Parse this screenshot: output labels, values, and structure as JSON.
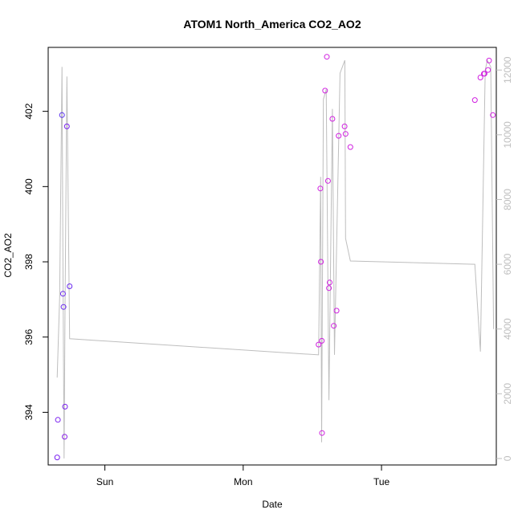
{
  "chart_data": {
    "type": "scatter",
    "title": "ATOM1 North_America CO2_AO2",
    "xlabel": "Date",
    "ylabel": "CO2_AO2",
    "x_ticks": [
      "Sun",
      "Mon",
      "Tue"
    ],
    "x_tick_positions": [
      1.0,
      2.0,
      3.0
    ],
    "xlim": [
      0.59,
      3.83
    ],
    "ylim": [
      392.6,
      403.7
    ],
    "y_ticks": [
      394,
      396,
      398,
      400,
      402
    ],
    "y2lim": [
      -200,
      12700
    ],
    "y2_ticks": [
      0,
      2000,
      4000,
      6000,
      8000,
      10000,
      12000
    ],
    "grid": false,
    "legend": "none",
    "colors": {
      "axis": "#000000",
      "secondary_axis": "#bebebe",
      "line": "#bebebe"
    },
    "series": [
      {
        "kind": "points",
        "points": [
          {
            "x": 0.655,
            "y": 392.8,
            "color": "#7a20f0"
          },
          {
            "x": 0.66,
            "y": 393.8,
            "color": "#7a20f0"
          },
          {
            "x": 0.69,
            "y": 401.9,
            "color": "#5a30f0"
          },
          {
            "x": 0.697,
            "y": 397.15,
            "color": "#6a28f0"
          },
          {
            "x": 0.701,
            "y": 396.8,
            "color": "#6a28f0"
          },
          {
            "x": 0.709,
            "y": 393.35,
            "color": "#8a20e8"
          },
          {
            "x": 0.712,
            "y": 394.15,
            "color": "#7a20f0"
          },
          {
            "x": 0.725,
            "y": 401.6,
            "color": "#7a20f0"
          },
          {
            "x": 0.745,
            "y": 397.35,
            "color": "#6a28f0"
          },
          {
            "x": 2.545,
            "y": 395.8,
            "color": "#d020e0"
          },
          {
            "x": 2.558,
            "y": 399.95,
            "color": "#d020e0"
          },
          {
            "x": 2.562,
            "y": 398.0,
            "color": "#d020e0"
          },
          {
            "x": 2.568,
            "y": 395.9,
            "color": "#d020e0"
          },
          {
            "x": 2.57,
            "y": 393.45,
            "color": "#d020e0"
          },
          {
            "x": 2.592,
            "y": 402.55,
            "color": "#d020e0"
          },
          {
            "x": 2.605,
            "y": 403.45,
            "color": "#d020e0"
          },
          {
            "x": 2.613,
            "y": 400.15,
            "color": "#d020e0"
          },
          {
            "x": 2.62,
            "y": 397.3,
            "color": "#d020e0"
          },
          {
            "x": 2.625,
            "y": 397.45,
            "color": "#d020e0"
          },
          {
            "x": 2.645,
            "y": 401.8,
            "color": "#d020e0"
          },
          {
            "x": 2.655,
            "y": 396.3,
            "color": "#d020e0"
          },
          {
            "x": 2.675,
            "y": 396.7,
            "color": "#d020e0"
          },
          {
            "x": 2.69,
            "y": 401.35,
            "color": "#d020e0"
          },
          {
            "x": 2.733,
            "y": 401.6,
            "color": "#d020e0"
          },
          {
            "x": 2.74,
            "y": 401.4,
            "color": "#d020e0"
          },
          {
            "x": 2.775,
            "y": 401.05,
            "color": "#d020e0"
          },
          {
            "x": 3.675,
            "y": 402.3,
            "color": "#d020e0"
          },
          {
            "x": 3.715,
            "y": 402.9,
            "color": "#d020e0"
          },
          {
            "x": 3.74,
            "y": 403.0,
            "color": "#d020e0"
          },
          {
            "x": 3.745,
            "y": 403.0,
            "color": "#d020e0"
          },
          {
            "x": 3.77,
            "y": 403.1,
            "color": "#d020e0"
          },
          {
            "x": 3.778,
            "y": 403.35,
            "color": "#d020e0"
          },
          {
            "x": 3.805,
            "y": 401.9,
            "color": "#d020e0"
          }
        ]
      },
      {
        "kind": "line",
        "axis": "right",
        "color": "#bebebe",
        "points": [
          {
            "x": 0.655,
            "y": 2500
          },
          {
            "x": 0.673,
            "y": 5000
          },
          {
            "x": 0.69,
            "y": 12100
          },
          {
            "x": 0.697,
            "y": 6000
          },
          {
            "x": 0.705,
            "y": 0
          },
          {
            "x": 0.712,
            "y": 4700
          },
          {
            "x": 0.725,
            "y": 11800
          },
          {
            "x": 0.745,
            "y": 3700
          },
          {
            "x": 2.545,
            "y": 3200
          },
          {
            "x": 2.56,
            "y": 8700
          },
          {
            "x": 2.567,
            "y": 500
          },
          {
            "x": 2.58,
            "y": 11100
          },
          {
            "x": 2.6,
            "y": 11400
          },
          {
            "x": 2.62,
            "y": 1800
          },
          {
            "x": 2.645,
            "y": 10800
          },
          {
            "x": 2.66,
            "y": 3200
          },
          {
            "x": 2.7,
            "y": 11900
          },
          {
            "x": 2.735,
            "y": 12300
          },
          {
            "x": 2.74,
            "y": 6800
          },
          {
            "x": 2.775,
            "y": 6100
          },
          {
            "x": 3.675,
            "y": 6000
          },
          {
            "x": 3.715,
            "y": 3300
          },
          {
            "x": 3.75,
            "y": 12000
          },
          {
            "x": 3.765,
            "y": 12300
          },
          {
            "x": 3.79,
            "y": 12100
          },
          {
            "x": 3.81,
            "y": 4000
          }
        ]
      }
    ]
  }
}
